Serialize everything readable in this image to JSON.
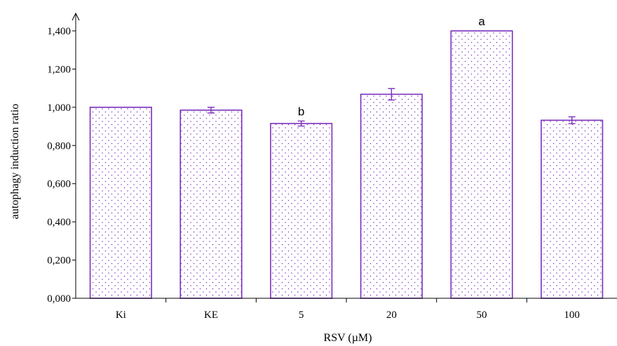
{
  "chart_data": {
    "type": "bar",
    "categories": [
      "Ki",
      "KE",
      "5",
      "20",
      "50",
      "100"
    ],
    "values": [
      1.0,
      0.985,
      0.915,
      1.068,
      1.4,
      0.932
    ],
    "errors": [
      0.0,
      0.015,
      0.013,
      0.03,
      0.0,
      0.018
    ],
    "annotations": [
      {
        "category": "5",
        "text": "b"
      },
      {
        "category": "50",
        "text": "a"
      }
    ],
    "title": "",
    "xlabel": "RSV (µM)",
    "ylabel": "autophagy induction ratio",
    "ylim": [
      0,
      1.4
    ],
    "yticks": [
      "0,000",
      "0,200",
      "0,400",
      "0,600",
      "0,800",
      "1,000",
      "1,200",
      "1,400"
    ],
    "ytick_values": [
      0,
      0.2,
      0.4,
      0.6,
      0.8,
      1.0,
      1.2,
      1.4
    ],
    "grid": false,
    "bar_edge_color": "#7b2fbe",
    "bar_fill_pattern": "dotted",
    "dot_color": "#7b2fbe"
  }
}
